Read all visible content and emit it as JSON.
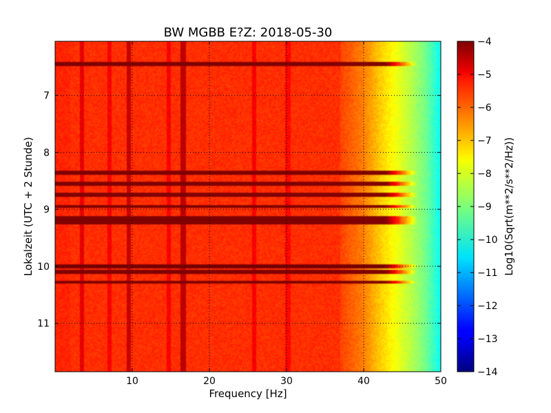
{
  "chart_data": {
    "type": "heatmap",
    "title": "BW MGBB E?Z: 2018-05-30",
    "xlabel": "Frequency [Hz]",
    "ylabel": "Lokalzeit (UTC + 2 Stunde)",
    "xlim": [
      0,
      50
    ],
    "ylim": [
      6.05,
      11.85
    ],
    "y_inverted": true,
    "grid": true,
    "x_ticks": [
      10,
      20,
      30,
      40,
      50
    ],
    "y_ticks": [
      7,
      8,
      9,
      10,
      11
    ],
    "colorbar": {
      "label": "Log10(Sqrt(m**2/s**2/Hz))",
      "colormap": "jet",
      "min": -14,
      "max": -4,
      "ticks": [
        -4,
        -5,
        -6,
        -7,
        -8,
        -9,
        -10,
        -11,
        -12,
        -13,
        -14
      ]
    },
    "levels": {
      "low_freq_band_0_37Hz": -5.7,
      "rolloff": [
        [
          37,
          -5.9
        ],
        [
          40,
          -6.5
        ],
        [
          42,
          -7.2
        ],
        [
          44,
          -7.8
        ],
        [
          46,
          -8.4
        ],
        [
          48,
          -9.1
        ],
        [
          50,
          -10.2
        ]
      ]
    },
    "vertical_lines_hz": [
      {
        "freq": 3.5,
        "level": -5.0
      },
      {
        "freq": 7.1,
        "level": -5.2
      },
      {
        "freq": 9.6,
        "level": -4.7
      },
      {
        "freq": 14.7,
        "level": -5.2
      },
      {
        "freq": 16.6,
        "level": -4.6
      },
      {
        "freq": 25.8,
        "level": -5.2
      },
      {
        "freq": 30.2,
        "level": -5.3
      }
    ],
    "horizontal_bands_hour": [
      {
        "time": 6.45,
        "level": -5.4
      },
      {
        "time": 8.35,
        "level": -5.3
      },
      {
        "time": 8.55,
        "level": -4.7
      },
      {
        "time": 8.75,
        "level": -4.9
      },
      {
        "time": 8.95,
        "level": -5.1
      },
      {
        "time": 9.15,
        "level": -5.1
      },
      {
        "time": 9.22,
        "level": -4.8
      },
      {
        "time": 10.0,
        "level": -4.8
      },
      {
        "time": 10.1,
        "level": -5.0
      },
      {
        "time": 10.28,
        "level": -4.9
      }
    ]
  }
}
